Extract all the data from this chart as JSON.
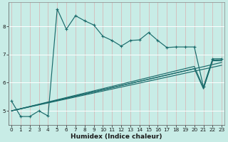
{
  "xlabel": "Humidex (Indice chaleur)",
  "bg_color": "#c8ece6",
  "grid_color": "#b0d8d2",
  "line_color": "#1a6b6b",
  "zigzag": {
    "x": [
      0,
      1,
      2,
      3,
      4,
      5,
      6,
      7,
      8,
      9,
      10,
      11,
      12,
      13,
      14,
      15,
      16,
      17,
      18,
      19,
      20,
      21,
      22,
      23
    ],
    "y": [
      5.35,
      4.8,
      4.8,
      5.0,
      4.82,
      8.62,
      7.9,
      8.38,
      8.2,
      8.05,
      7.65,
      7.5,
      7.3,
      7.5,
      7.52,
      7.78,
      7.5,
      7.25,
      7.27,
      7.27,
      7.27,
      5.85,
      6.85,
      6.85
    ]
  },
  "linear_lines": [
    {
      "x": [
        0,
        23
      ],
      "y": [
        5.0,
        6.72
      ]
    },
    {
      "x": [
        0,
        23
      ],
      "y": [
        5.0,
        6.62
      ]
    },
    {
      "x": [
        0,
        20,
        21,
        22,
        23
      ],
      "y": [
        5.0,
        6.58,
        5.82,
        6.8,
        6.82
      ]
    },
    {
      "x": [
        0,
        20,
        21,
        22,
        23
      ],
      "y": [
        5.0,
        6.5,
        5.78,
        6.78,
        6.78
      ]
    }
  ],
  "xlim": [
    -0.3,
    23.3
  ],
  "ylim": [
    4.5,
    8.85
  ],
  "yticks": [
    5,
    6,
    7,
    8
  ],
  "xticks": [
    0,
    1,
    2,
    3,
    4,
    5,
    6,
    7,
    8,
    9,
    10,
    11,
    12,
    13,
    14,
    15,
    16,
    17,
    18,
    19,
    20,
    21,
    22,
    23
  ]
}
